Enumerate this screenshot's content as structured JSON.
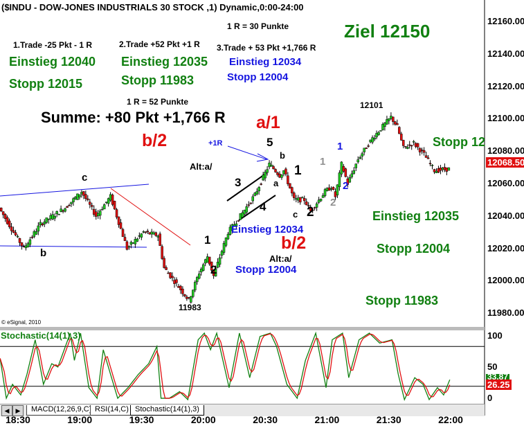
{
  "chart_data": {
    "type": "candlestick",
    "title": "($INDU - DOW-JONES INDUSTRIALS 30 STOCK ,1) Dynamic,0:00-24:00",
    "price_axis": {
      "ylim": [
        11972,
        12170
      ],
      "ticks": [
        "12160.00",
        "12140.00",
        "12120.00",
        "12100.00",
        "12080.00",
        "12060.00",
        "12040.00",
        "12020.00",
        "12000.00",
        "11980.00"
      ],
      "last": "12068.50"
    },
    "time_ticks": [
      "18:30",
      "19:00",
      "19:30",
      "20:00",
      "20:30",
      "21:00",
      "21:30",
      "22:00"
    ],
    "price_path_minutes_after_1830": [
      [
        -9,
        12045
      ],
      [
        -2,
        12030
      ],
      [
        3,
        12020
      ],
      [
        11,
        12035
      ],
      [
        23,
        12045
      ],
      [
        31,
        12055
      ],
      [
        38,
        12040
      ],
      [
        45,
        12052
      ],
      [
        53,
        12020
      ],
      [
        61,
        12030
      ],
      [
        68,
        12028
      ],
      [
        71,
        12008
      ],
      [
        77,
        11998
      ],
      [
        83,
        11988
      ],
      [
        88,
        12005
      ],
      [
        92,
        12015
      ],
      [
        95,
        12003
      ],
      [
        102,
        12030
      ],
      [
        108,
        12040
      ],
      [
        115,
        12053
      ],
      [
        122,
        12072
      ],
      [
        127,
        12065
      ],
      [
        129,
        12068
      ],
      [
        134,
        12050
      ],
      [
        139,
        12050
      ],
      [
        142,
        12043
      ],
      [
        149,
        12055
      ],
      [
        152,
        12058
      ],
      [
        154,
        12052
      ],
      [
        157,
        12072
      ],
      [
        160,
        12060
      ],
      [
        165,
        12075
      ],
      [
        172,
        12088
      ],
      [
        181,
        12101
      ],
      [
        184,
        12095
      ],
      [
        187,
        12082
      ],
      [
        192,
        12085
      ],
      [
        197,
        12078
      ],
      [
        202,
        12068
      ],
      [
        209,
        12069
      ]
    ],
    "stochastic": {
      "label": "Stochastic(14(1),3)",
      "ticks": [
        "100",
        "50",
        "0"
      ],
      "levels": [
        80,
        20
      ],
      "k_last": "33.87",
      "d_last": "26.25",
      "k_path": [
        [
          -9,
          62
        ],
        [
          -6,
          2
        ],
        [
          -3,
          23
        ],
        [
          1,
          7
        ],
        [
          4,
          38
        ],
        [
          8,
          90
        ],
        [
          12,
          23
        ],
        [
          16,
          54
        ],
        [
          19,
          49
        ],
        [
          25,
          100
        ],
        [
          27,
          59
        ],
        [
          30,
          100
        ],
        [
          34,
          18
        ],
        [
          38,
          2
        ],
        [
          41,
          75
        ],
        [
          45,
          33
        ],
        [
          48,
          2
        ],
        [
          53,
          18
        ],
        [
          58,
          38
        ],
        [
          63,
          54
        ],
        [
          67,
          80
        ],
        [
          69,
          2
        ],
        [
          73,
          2
        ],
        [
          78,
          12
        ],
        [
          82,
          0
        ],
        [
          87,
          90
        ],
        [
          90,
          100
        ],
        [
          93,
          75
        ],
        [
          96,
          100
        ],
        [
          102,
          18
        ],
        [
          107,
          100
        ],
        [
          112,
          33
        ],
        [
          117,
          95
        ],
        [
          122,
          100
        ],
        [
          125,
          80
        ],
        [
          130,
          23
        ],
        [
          135,
          2
        ],
        [
          139,
          59
        ],
        [
          144,
          100
        ],
        [
          149,
          18
        ],
        [
          152,
          90
        ],
        [
          157,
          100
        ],
        [
          160,
          33
        ],
        [
          165,
          90
        ],
        [
          170,
          100
        ],
        [
          175,
          85
        ],
        [
          181,
          90
        ],
        [
          184,
          38
        ],
        [
          187,
          0
        ],
        [
          192,
          33
        ],
        [
          196,
          23
        ],
        [
          199,
          0
        ],
        [
          203,
          18
        ],
        [
          206,
          7
        ],
        [
          209,
          30
        ]
      ]
    },
    "tabs": [
      "MACD(12,26,9,C)",
      "RSI(14,C)",
      "Stochastic(14(1),3)"
    ],
    "copyright": "© eSignal, 2010",
    "annotations": {
      "r30": "1 R = 30 Punkte",
      "trade1": "1.Trade -25 Pkt - 1 R",
      "trade2": "2.Trade +52 Pkt +1 R",
      "trade3": "3.Trade + 53 Pkt +1,766 R",
      "e1": "Einstieg 12040",
      "s1": "Stopp 12015",
      "e2": "Einstieg 12035",
      "s2": "Stopp 11983",
      "e3": "Einstieg 12034",
      "s3": "Stopp 12004",
      "r52": "1 R = 52 Punkte",
      "summe": "Summe: +80 Pkt +1,766 R",
      "ziel": "Ziel 12150",
      "b2a": "b/2",
      "a1": "a/1",
      "b2b": "b/2",
      "plus1r": "+1R",
      "alt1": "Alt:a/",
      "alt2": "Alt:a/",
      "c": "c",
      "b": "b",
      "w5": "5",
      "w3": "3",
      "w4": "4",
      "wa": "a",
      "wb": "b",
      "w1a": "1",
      "w2a": "2",
      "w1b": "1",
      "w2b": "2",
      "wc": "c",
      "g1": "1",
      "g2": "2",
      "bl1": "1",
      "bl2": "2",
      "hi": "12101",
      "lo": "11983",
      "e3b": "Einstieg 12034",
      "s3b": "Stopp 12004",
      "rs": "Stopp 12",
      "re": "Einstieg 12035",
      "rs2": "Stopp 12004",
      "rs3": "Stopp 11983"
    }
  }
}
